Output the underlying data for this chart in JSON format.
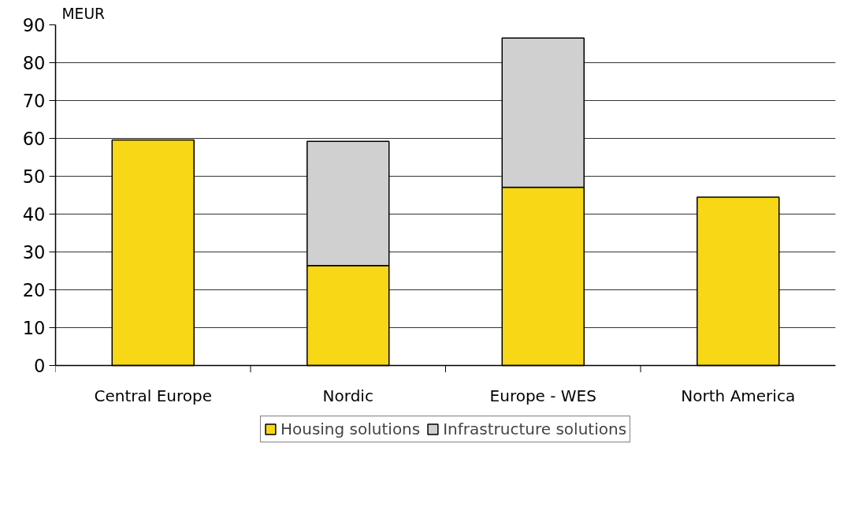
{
  "chart_data": {
    "type": "bar",
    "stacked": true,
    "ylabel": "MEUR",
    "categories": [
      "Central Europe",
      "Nordic",
      "Europe - WES",
      "North America"
    ],
    "series": [
      {
        "name": "Housing solutions",
        "color": "#f7d716",
        "values": [
          59.6,
          26.4,
          47.1,
          44.5
        ]
      },
      {
        "name": "Infrastructure solutions",
        "color": "#d0d0d0",
        "values": [
          null,
          32.8,
          39.4,
          null
        ]
      }
    ],
    "ylim": [
      0,
      90
    ],
    "yticks": [
      0,
      10,
      20,
      30,
      40,
      50,
      60,
      70,
      80,
      90
    ],
    "grid": "y",
    "legend": "bottom"
  }
}
